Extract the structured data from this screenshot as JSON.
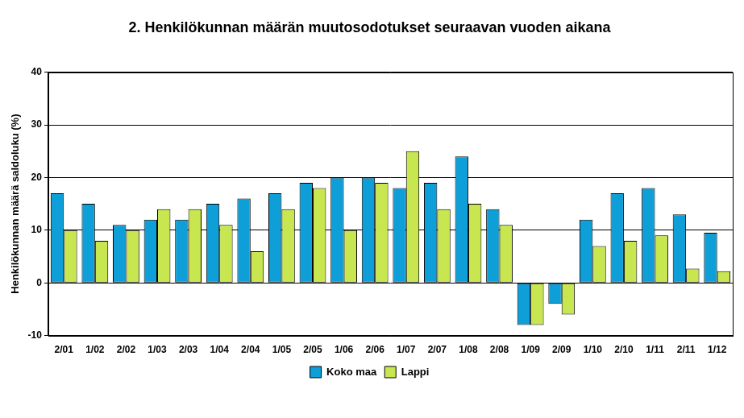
{
  "chart_data": {
    "type": "bar",
    "title": "2. Henkilökunnan määrän muutosodotukset seuraavan vuoden aikana",
    "y_label": "Henkilökunnan määrä saldoluku (%)",
    "categories": [
      "2/01",
      "1/02",
      "2/02",
      "1/03",
      "2/03",
      "1/04",
      "2/04",
      "1/05",
      "2/05",
      "1/06",
      "2/06",
      "1/07",
      "2/07",
      "1/08",
      "2/08",
      "1/09",
      "2/09",
      "1/10",
      "2/10",
      "1/11",
      "2/11",
      "1/12"
    ],
    "series": [
      {
        "name": "Koko maa",
        "color": "#0e9fd8",
        "values": [
          17,
          15,
          11,
          12,
          12,
          15,
          16,
          17,
          19,
          20,
          20,
          18,
          19,
          24,
          14,
          -8,
          -4,
          12,
          17,
          18,
          13,
          9.5
        ]
      },
      {
        "name": "Lappi",
        "color": "#c8e64f",
        "values": [
          10,
          8,
          10,
          14,
          14,
          11,
          6,
          14,
          18,
          10,
          19,
          25,
          14,
          15,
          11,
          -8,
          -6,
          7,
          8,
          9,
          2.7,
          2.2
        ]
      }
    ],
    "ylim": [
      -10,
      40
    ],
    "yticks": [
      -10,
      0,
      10,
      20,
      30,
      40
    ],
    "grid": true,
    "legend": "bottom"
  }
}
